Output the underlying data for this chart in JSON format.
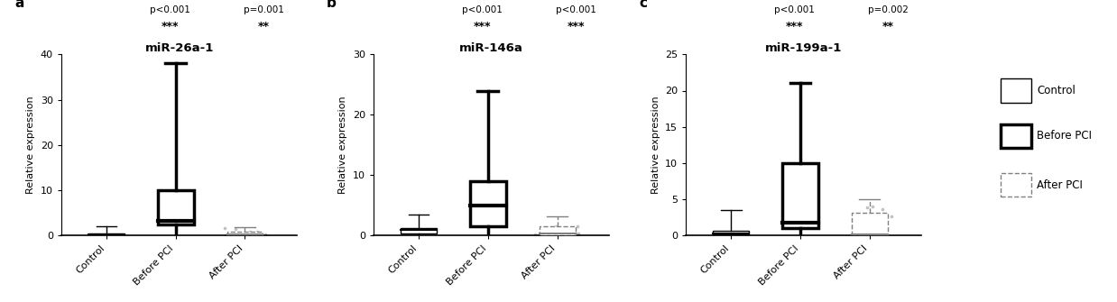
{
  "panels": [
    {
      "label": "a",
      "title": "miR-26a-1",
      "ylim": [
        0,
        40
      ],
      "yticks": [
        0,
        10,
        20,
        30,
        40
      ],
      "ylabel": "Relative expression",
      "pvalues": [
        "p<0.001",
        "p=0.001"
      ],
      "stars": [
        "***",
        "**"
      ],
      "groups": [
        {
          "name": "Control",
          "q1": 0.0,
          "median": 0.25,
          "q3": 0.5,
          "whisker_low": 0.0,
          "whisker_high": 2.0,
          "style": "thin"
        },
        {
          "name": "Before PCI",
          "q1": 2.5,
          "median": 3.2,
          "q3": 10.0,
          "whisker_low": 0.0,
          "whisker_high": 38.0,
          "style": "thick"
        },
        {
          "name": "After PCI",
          "q1": 0.05,
          "median": 0.2,
          "q3": 0.9,
          "whisker_low": 0.0,
          "whisker_high": 1.8,
          "style": "dashed"
        }
      ]
    },
    {
      "label": "b",
      "title": "miR-146a",
      "ylim": [
        0,
        30
      ],
      "yticks": [
        0,
        10,
        20,
        30
      ],
      "ylabel": "Relative expression",
      "pvalues": [
        "p<0.001",
        "p<0.001"
      ],
      "stars": [
        "***",
        "***"
      ],
      "groups": [
        {
          "name": "Control",
          "q1": 0.3,
          "median": 0.9,
          "q3": 1.3,
          "whisker_low": 0.0,
          "whisker_high": 3.5,
          "style": "thin"
        },
        {
          "name": "Before PCI",
          "q1": 1.5,
          "median": 5.0,
          "q3": 9.0,
          "whisker_low": 0.0,
          "whisker_high": 24.0,
          "style": "thick"
        },
        {
          "name": "After PCI",
          "q1": 0.05,
          "median": 0.4,
          "q3": 1.5,
          "whisker_low": 0.0,
          "whisker_high": 3.2,
          "style": "dashed"
        }
      ]
    },
    {
      "label": "c",
      "title": "miR-199a-1",
      "ylim": [
        0,
        25
      ],
      "yticks": [
        0,
        5,
        10,
        15,
        20,
        25
      ],
      "ylabel": "Relative expression",
      "pvalues": [
        "p<0.001",
        "p=0.002"
      ],
      "stars": [
        "***",
        "**"
      ],
      "groups": [
        {
          "name": "Control",
          "q1": 0.1,
          "median": 0.3,
          "q3": 0.7,
          "whisker_low": 0.0,
          "whisker_high": 3.5,
          "style": "thin"
        },
        {
          "name": "Before PCI",
          "q1": 1.0,
          "median": 1.8,
          "q3": 10.0,
          "whisker_low": 0.0,
          "whisker_high": 21.0,
          "style": "thick"
        },
        {
          "name": "After PCI",
          "q1": 0.05,
          "median": 0.2,
          "q3": 3.2,
          "whisker_low": 0.0,
          "whisker_high": 5.0,
          "style": "dashed"
        }
      ]
    }
  ],
  "xticklabels": [
    "Control",
    "Before PCI",
    "After PCI"
  ],
  "background_color": "#ffffff"
}
